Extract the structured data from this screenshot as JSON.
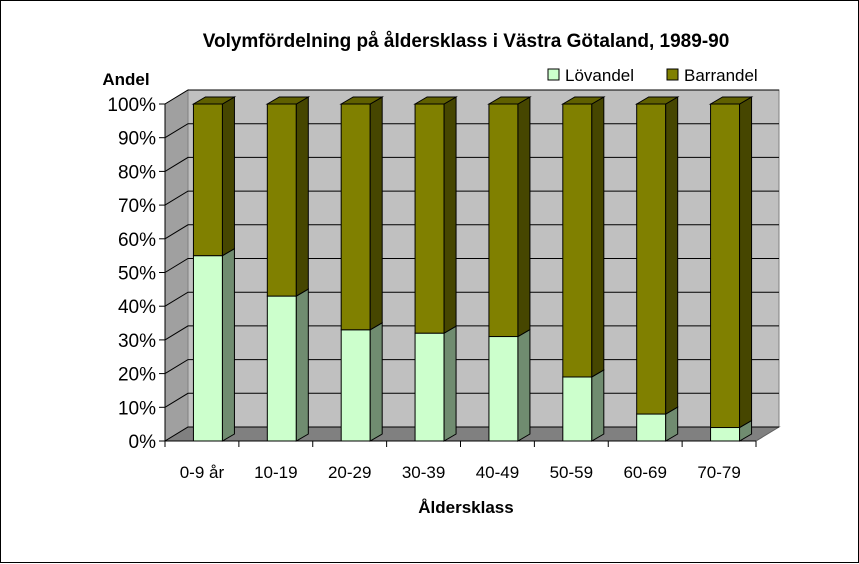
{
  "chart_data": {
    "type": "bar",
    "stacked": true,
    "normalized": true,
    "title": "Volymfördelning på åldersklass i Västra Götaland, 1989-90",
    "xlabel": "Åldersklass",
    "ylabel": "Andel",
    "ylim": [
      0,
      100
    ],
    "yticks": [
      "0%",
      "10%",
      "20%",
      "30%",
      "40%",
      "50%",
      "60%",
      "70%",
      "80%",
      "90%",
      "100%"
    ],
    "categories": [
      "0-9 år",
      "10-19",
      "20-29",
      "30-39",
      "40-49",
      "50-59",
      "60-69",
      "70-79"
    ],
    "series": [
      {
        "name": "Lövandel",
        "color": "#ccffcc",
        "values": [
          55,
          43,
          33,
          32,
          31,
          19,
          8,
          4
        ]
      },
      {
        "name": "Barrandel",
        "color": "#808000",
        "values": [
          45,
          57,
          67,
          68,
          69,
          81,
          92,
          96
        ]
      }
    ],
    "legend": "top-right",
    "grid": true
  }
}
